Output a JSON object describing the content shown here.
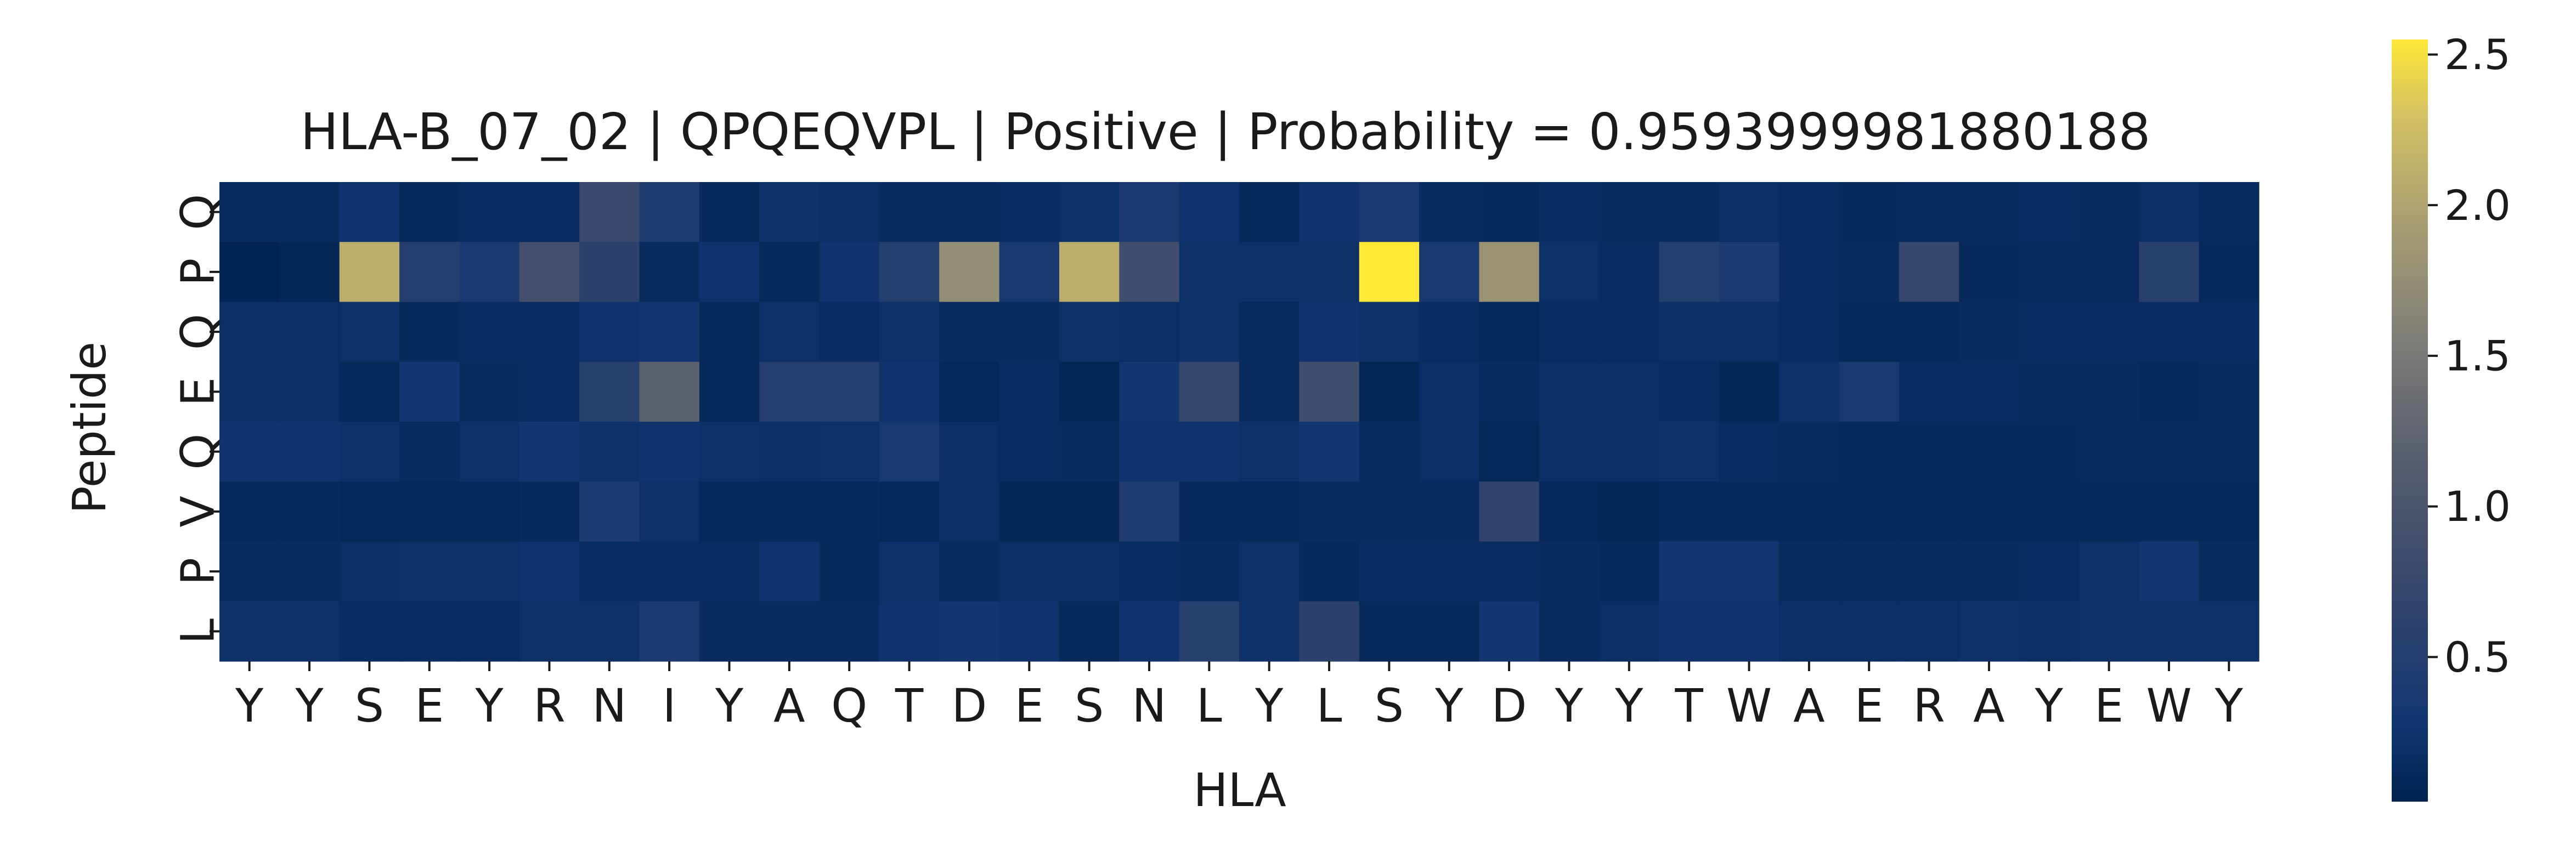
{
  "chart_data": {
    "type": "heatmap",
    "title": "HLA-B_07_02 | QPQEQVPL | Positive | Probability = 0.9593999981880188",
    "xlabel": "HLA",
    "ylabel": "Peptide",
    "x_categories": [
      "Y",
      "Y",
      "S",
      "E",
      "Y",
      "R",
      "N",
      "I",
      "Y",
      "A",
      "Q",
      "T",
      "D",
      "E",
      "S",
      "N",
      "L",
      "Y",
      "L",
      "S",
      "Y",
      "D",
      "Y",
      "Y",
      "T",
      "W",
      "A",
      "E",
      "R",
      "A",
      "Y",
      "E",
      "W",
      "Y"
    ],
    "y_categories": [
      "Q",
      "P",
      "Q",
      "E",
      "Q",
      "V",
      "P",
      "L"
    ],
    "values": [
      [
        0.15,
        0.15,
        0.25,
        0.12,
        0.16,
        0.16,
        0.75,
        0.45,
        0.12,
        0.22,
        0.18,
        0.14,
        0.14,
        0.16,
        0.2,
        0.4,
        0.25,
        0.1,
        0.25,
        0.35,
        0.15,
        0.12,
        0.16,
        0.15,
        0.15,
        0.18,
        0.16,
        0.12,
        0.14,
        0.15,
        0.16,
        0.15,
        0.18,
        0.14
      ],
      [
        0.05,
        0.08,
        2.1,
        0.5,
        0.4,
        0.9,
        0.6,
        0.15,
        0.25,
        0.12,
        0.25,
        0.5,
        1.75,
        0.35,
        2.1,
        0.85,
        0.2,
        0.2,
        0.2,
        2.55,
        0.35,
        1.8,
        0.2,
        0.16,
        0.5,
        0.4,
        0.16,
        0.14,
        0.7,
        0.12,
        0.15,
        0.14,
        0.55,
        0.12
      ],
      [
        0.18,
        0.18,
        0.2,
        0.12,
        0.16,
        0.16,
        0.25,
        0.3,
        0.12,
        0.2,
        0.16,
        0.22,
        0.14,
        0.14,
        0.2,
        0.18,
        0.22,
        0.14,
        0.25,
        0.22,
        0.16,
        0.1,
        0.16,
        0.16,
        0.18,
        0.18,
        0.16,
        0.1,
        0.12,
        0.14,
        0.16,
        0.16,
        0.16,
        0.16
      ],
      [
        0.18,
        0.18,
        0.12,
        0.3,
        0.14,
        0.16,
        0.55,
        1.2,
        0.12,
        0.5,
        0.5,
        0.25,
        0.1,
        0.16,
        0.08,
        0.3,
        0.7,
        0.15,
        0.85,
        0.08,
        0.18,
        0.14,
        0.18,
        0.18,
        0.16,
        0.08,
        0.22,
        0.35,
        0.16,
        0.16,
        0.14,
        0.14,
        0.12,
        0.14
      ],
      [
        0.25,
        0.25,
        0.2,
        0.14,
        0.2,
        0.3,
        0.22,
        0.25,
        0.2,
        0.18,
        0.2,
        0.35,
        0.18,
        0.16,
        0.14,
        0.25,
        0.25,
        0.2,
        0.3,
        0.14,
        0.18,
        0.1,
        0.18,
        0.18,
        0.22,
        0.16,
        0.14,
        0.1,
        0.12,
        0.12,
        0.12,
        0.14,
        0.14,
        0.14
      ],
      [
        0.12,
        0.12,
        0.1,
        0.1,
        0.1,
        0.12,
        0.4,
        0.2,
        0.1,
        0.12,
        0.12,
        0.1,
        0.18,
        0.08,
        0.08,
        0.45,
        0.12,
        0.12,
        0.14,
        0.14,
        0.14,
        0.65,
        0.1,
        0.08,
        0.12,
        0.12,
        0.12,
        0.12,
        0.12,
        0.12,
        0.1,
        0.12,
        0.12,
        0.12
      ],
      [
        0.14,
        0.14,
        0.18,
        0.2,
        0.2,
        0.25,
        0.16,
        0.16,
        0.16,
        0.25,
        0.12,
        0.22,
        0.14,
        0.18,
        0.18,
        0.16,
        0.14,
        0.2,
        0.12,
        0.16,
        0.16,
        0.16,
        0.14,
        0.12,
        0.3,
        0.3,
        0.14,
        0.14,
        0.14,
        0.14,
        0.16,
        0.2,
        0.28,
        0.14
      ],
      [
        0.22,
        0.22,
        0.16,
        0.16,
        0.16,
        0.2,
        0.2,
        0.4,
        0.14,
        0.14,
        0.14,
        0.25,
        0.3,
        0.25,
        0.12,
        0.25,
        0.55,
        0.22,
        0.6,
        0.12,
        0.12,
        0.28,
        0.14,
        0.18,
        0.25,
        0.25,
        0.18,
        0.18,
        0.18,
        0.22,
        0.18,
        0.2,
        0.2,
        0.2
      ]
    ],
    "colormap": "cividis",
    "colorbar": {
      "ticks": [
        "0.5",
        "1.0",
        "1.5",
        "2.0",
        "2.5"
      ],
      "range": [
        0.02,
        2.55
      ]
    },
    "colors": [
      "#00224e",
      "#123570",
      "#575c6d",
      "#7c7b78",
      "#a59c74",
      "#d3c164",
      "#fee838"
    ]
  }
}
